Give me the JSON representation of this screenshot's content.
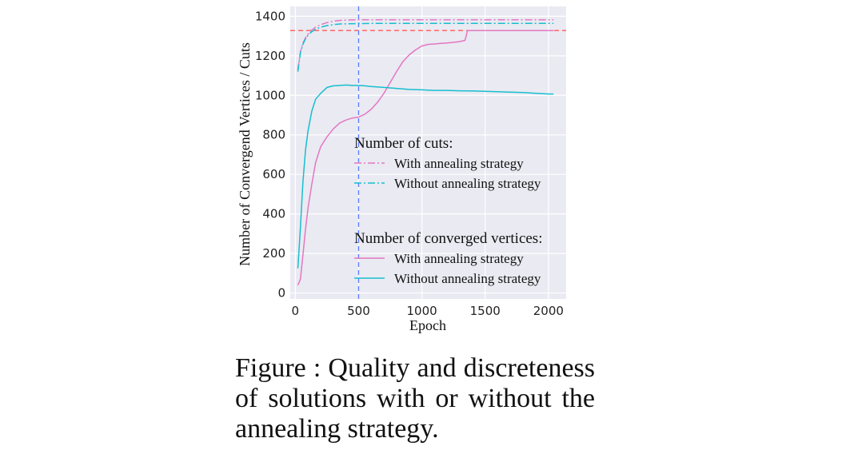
{
  "chart_data": {
    "type": "line",
    "xlabel": "Epoch",
    "ylabel": "Number of Convergend Vertices / Cuts",
    "xlim": [
      -40,
      2140
    ],
    "ylim": [
      -30,
      1450
    ],
    "xticks": [
      0,
      500,
      1000,
      1500,
      2000
    ],
    "yticks": [
      0,
      200,
      400,
      600,
      800,
      1000,
      1200,
      1400
    ],
    "grid": true,
    "legend_placement": "center-right",
    "reference_lines": [
      {
        "orientation": "horizontal",
        "value": 1328,
        "color": "#ff5a5a",
        "style": "dashed"
      },
      {
        "orientation": "vertical",
        "value": 500,
        "color": "#5a7dff",
        "style": "dashed"
      }
    ],
    "legend_groups": [
      {
        "title": "Number of cuts:",
        "entries": [
          {
            "label": "With annealing strategy",
            "series": 0
          },
          {
            "label": "Without annealing strategy",
            "series": 1
          }
        ]
      },
      {
        "title": "Number of converged vertices:",
        "entries": [
          {
            "label": "With annealing strategy",
            "series": 2
          },
          {
            "label": "Without annealing strategy",
            "series": 3
          }
        ]
      }
    ],
    "series": [
      {
        "color": "#e377c2",
        "style": "dashdot",
        "x": [
          20,
          40,
          60,
          80,
          100,
          130,
          160,
          200,
          250,
          300,
          350,
          400,
          500,
          600,
          800,
          1000,
          1500,
          2000,
          2040
        ],
        "y": [
          1130,
          1220,
          1265,
          1290,
          1310,
          1330,
          1345,
          1358,
          1368,
          1375,
          1379,
          1381,
          1382,
          1382,
          1382,
          1382,
          1382,
          1382,
          1382
        ]
      },
      {
        "color": "#17becf",
        "style": "dashdot",
        "x": [
          20,
          40,
          60,
          80,
          100,
          130,
          160,
          200,
          250,
          300,
          350,
          400,
          500,
          600,
          800,
          1000,
          1500,
          2000,
          2040
        ],
        "y": [
          1120,
          1215,
          1258,
          1285,
          1305,
          1322,
          1335,
          1345,
          1353,
          1358,
          1361,
          1362,
          1363,
          1364,
          1364,
          1364,
          1364,
          1364,
          1364
        ]
      },
      {
        "color": "#e377c2",
        "style": "solid",
        "x": [
          20,
          40,
          60,
          80,
          100,
          130,
          160,
          200,
          250,
          300,
          350,
          400,
          450,
          500,
          550,
          600,
          650,
          700,
          750,
          800,
          850,
          900,
          950,
          1000,
          1050,
          1100,
          1150,
          1200,
          1250,
          1300,
          1340,
          1350,
          1360,
          1400,
          1500,
          1600,
          1700,
          1800,
          1900,
          2000,
          2040
        ],
        "y": [
          40,
          70,
          190,
          320,
          430,
          550,
          660,
          740,
          790,
          830,
          860,
          875,
          885,
          890,
          905,
          930,
          965,
          1010,
          1065,
          1120,
          1170,
          1205,
          1230,
          1250,
          1258,
          1260,
          1263,
          1265,
          1268,
          1272,
          1278,
          1300,
          1328,
          1328,
          1328,
          1328,
          1328,
          1328,
          1328,
          1328,
          1328
        ]
      },
      {
        "color": "#17becf",
        "style": "solid",
        "x": [
          20,
          40,
          60,
          80,
          100,
          130,
          160,
          200,
          250,
          300,
          350,
          400,
          450,
          500,
          550,
          600,
          700,
          800,
          900,
          1000,
          1100,
          1200,
          1300,
          1400,
          1500,
          1600,
          1700,
          1800,
          1900,
          2000,
          2040
        ],
        "y": [
          125,
          330,
          560,
          720,
          820,
          920,
          980,
          1010,
          1040,
          1048,
          1050,
          1052,
          1050,
          1050,
          1048,
          1045,
          1040,
          1035,
          1030,
          1028,
          1025,
          1025,
          1023,
          1022,
          1020,
          1018,
          1016,
          1014,
          1010,
          1007,
          1007
        ]
      }
    ]
  },
  "caption": {
    "text": "Figure   : Quality and discreteness of solutions with or without the annealing strategy."
  }
}
